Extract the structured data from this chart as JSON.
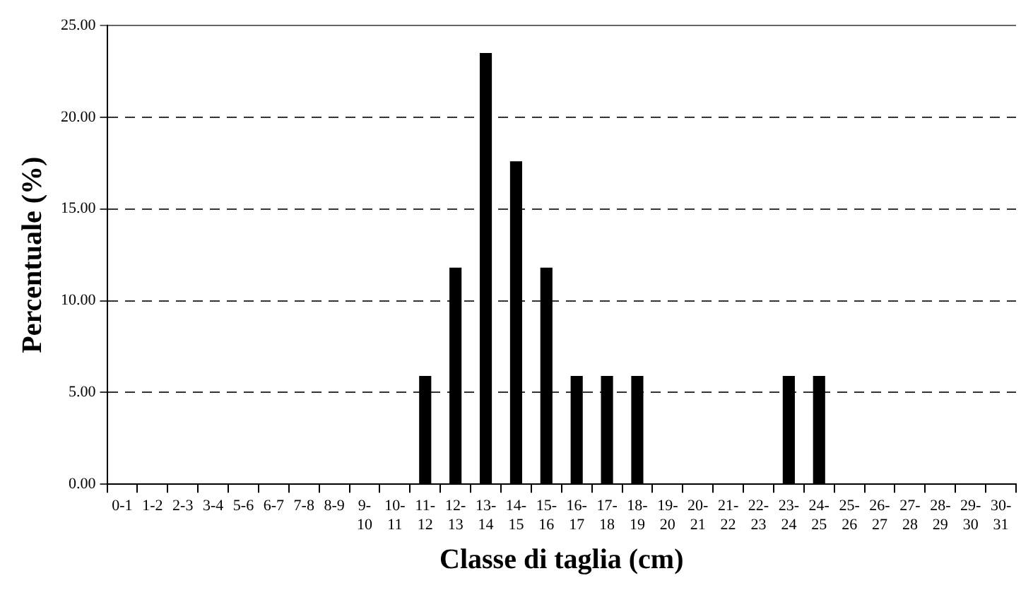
{
  "chart_data": {
    "type": "bar",
    "xlabel": "Classe di taglia (cm)",
    "ylabel": "Percentuale (%)",
    "categories": [
      "0-1",
      "1-2",
      "2-3",
      "3-4",
      "5-6",
      "6-7",
      "7-8",
      "8-9",
      "9-10",
      "10-11",
      "11-12",
      "12-13",
      "13-14",
      "14-15",
      "15-16",
      "16-17",
      "17-18",
      "18-19",
      "19-20",
      "20-21",
      "21-22",
      "22-23",
      "23-24",
      "24-25",
      "25-26",
      "26-27",
      "27-28",
      "28-29",
      "29-30",
      "30-31"
    ],
    "values": [
      0,
      0,
      0,
      0,
      0,
      0,
      0,
      0,
      0,
      0,
      5.9,
      11.8,
      23.5,
      17.6,
      11.8,
      5.9,
      5.9,
      5.9,
      0,
      0,
      0,
      0,
      5.9,
      5.9,
      0,
      0,
      0,
      0,
      0,
      0
    ],
    "color": "#000000",
    "ylim": [
      0,
      25
    ],
    "yticks": [
      {
        "value": 0,
        "label": "0.00"
      },
      {
        "value": 5,
        "label": "5.00"
      },
      {
        "value": 10,
        "label": "10.00"
      },
      {
        "value": 15,
        "label": "15.00"
      },
      {
        "value": 20,
        "label": "20.00"
      },
      {
        "value": 25,
        "label": "25.00"
      }
    ],
    "grid": "y",
    "legend": false
  }
}
